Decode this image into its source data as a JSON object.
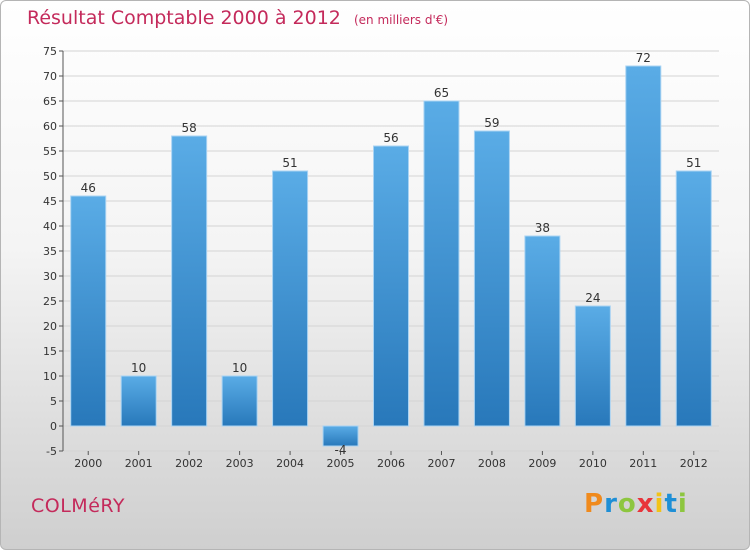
{
  "header": {
    "title": "Résultat Comptable 2000 à 2012",
    "unit": "(en milliers d'€)"
  },
  "footer": {
    "commune": "COLMéRY",
    "brand": "Proxiti",
    "brand_colors": [
      "#f08a1c",
      "#1e8fd6",
      "#8dc63f",
      "#e8343b",
      "#f2c318",
      "#1e8fd6",
      "#8dc63f"
    ]
  },
  "colors": {
    "title": "#c42a5b",
    "bar_light": "#5aace6",
    "bar_dark": "#2878ba",
    "grid": "#d4d4d4"
  },
  "chart_data": {
    "type": "bar",
    "title": "Résultat Comptable 2000 à 2012",
    "xlabel": "",
    "ylabel": "",
    "categories": [
      "2000",
      "2001",
      "2002",
      "2003",
      "2004",
      "2005",
      "2006",
      "2007",
      "2008",
      "2009",
      "2010",
      "2011",
      "2012"
    ],
    "values": [
      46,
      10,
      58,
      10,
      51,
      -4,
      56,
      65,
      59,
      38,
      24,
      72,
      51
    ],
    "ylim": [
      -5,
      75
    ],
    "yticks": [
      -5,
      0,
      5,
      10,
      15,
      20,
      25,
      30,
      35,
      40,
      45,
      50,
      55,
      60,
      65,
      70,
      75
    ],
    "grid": true,
    "legend": "none"
  }
}
